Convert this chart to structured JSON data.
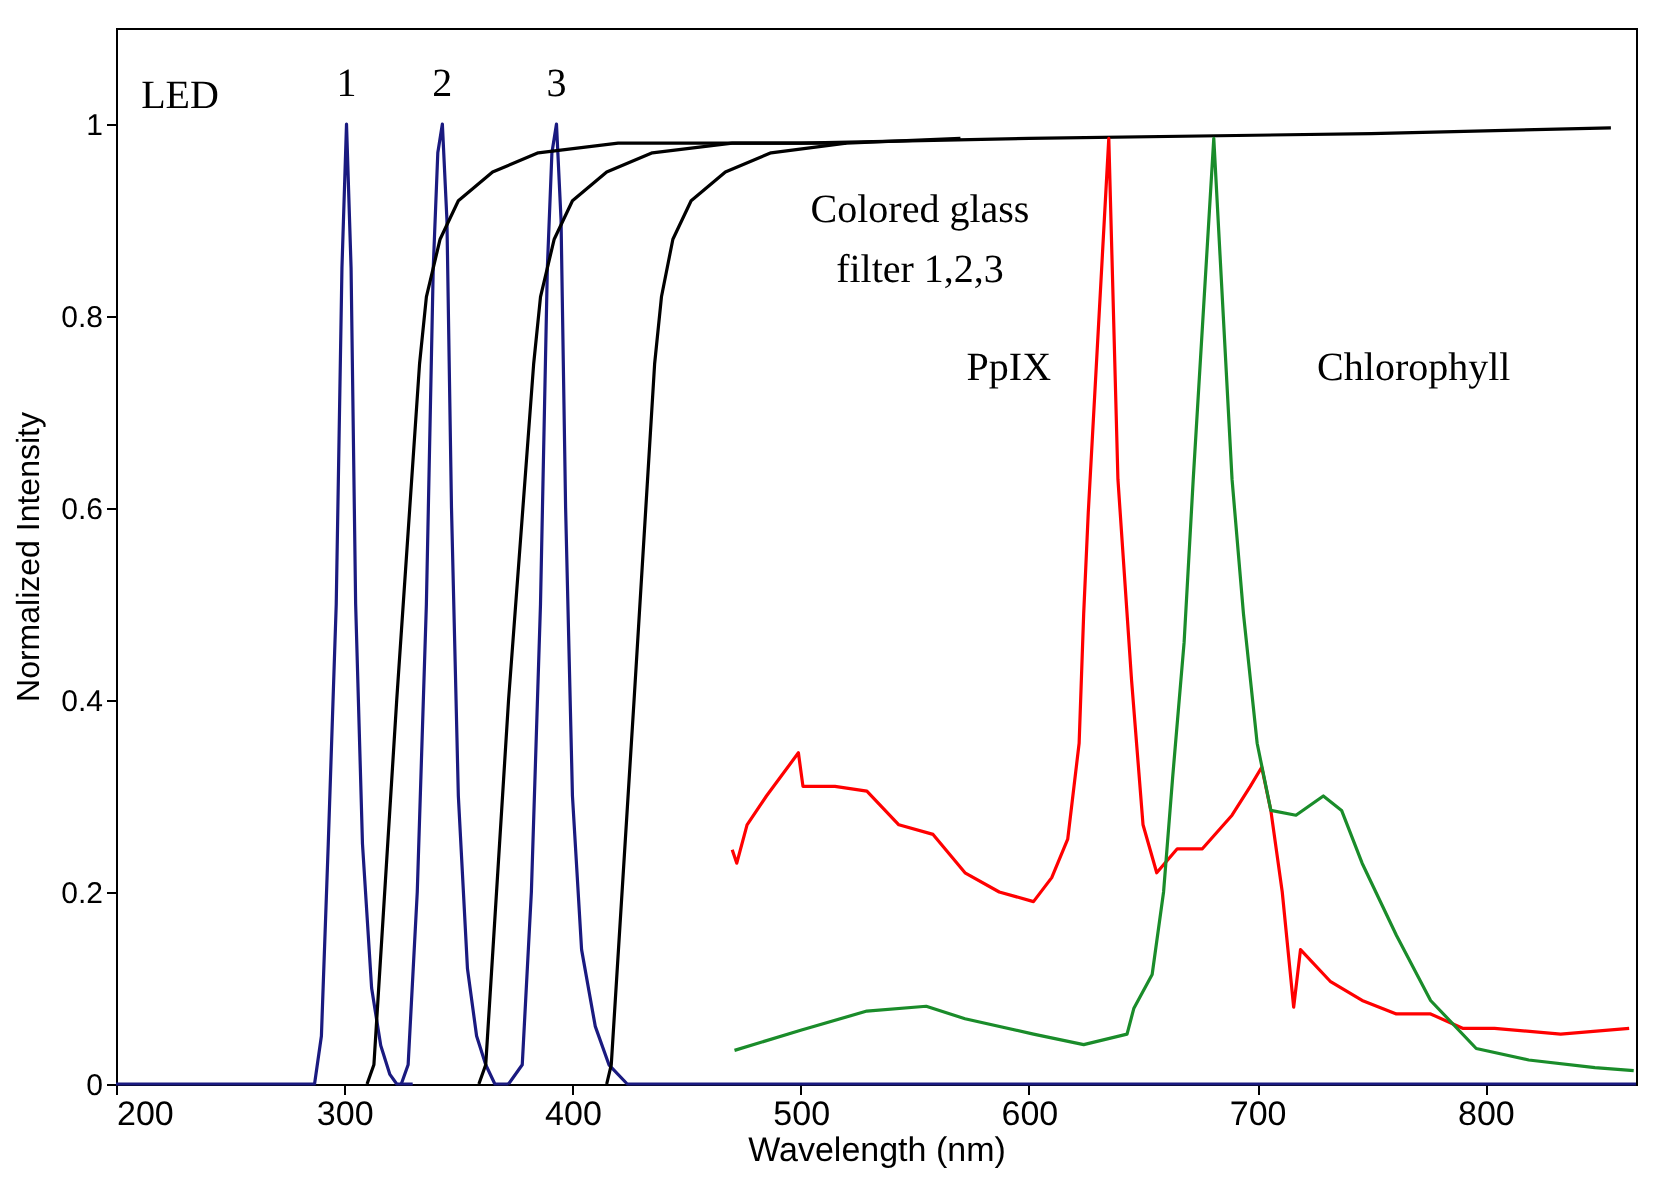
{
  "chart_data": {
    "type": "line",
    "xlabel": "Wavelength (nm)",
    "ylabel": "Normalized Intensity",
    "xlim": [
      200,
      866
    ],
    "ylim": [
      0,
      1.1
    ],
    "xticks": [
      200,
      300,
      400,
      500,
      600,
      700,
      800
    ],
    "yticks": [
      0,
      0.2,
      0.4,
      0.6,
      0.8,
      1
    ],
    "grid": false,
    "legend": false,
    "marker": "none",
    "line_style": "solid",
    "series": [
      {
        "name": "1",
        "color": "#1a1a80",
        "x": [
          200,
          287,
          290,
          293,
          296.5,
          299,
          301,
          303,
          305,
          308,
          312,
          316,
          320,
          323,
          330
        ],
        "values": [
          0,
          0,
          0.05,
          0.25,
          0.5,
          0.85,
          1,
          0.85,
          0.5,
          0.25,
          0.1,
          0.04,
          0.01,
          0,
          0
        ]
      },
      {
        "name": "2",
        "color": "#1a1a80",
        "x": [
          325,
          328,
          332,
          336,
          339,
          341,
          343,
          345,
          347,
          350,
          354,
          358,
          362,
          366,
          372
        ],
        "values": [
          0,
          0.02,
          0.2,
          0.5,
          0.85,
          0.97,
          1,
          0.9,
          0.6,
          0.3,
          0.12,
          0.05,
          0.02,
          0,
          0
        ]
      },
      {
        "name": "3",
        "color": "#1a1a80",
        "x": [
          372,
          378,
          382,
          386,
          389,
          391,
          393,
          395,
          397,
          400,
          404,
          410,
          416,
          424,
          430,
          866
        ],
        "values": [
          0,
          0.02,
          0.2,
          0.5,
          0.85,
          0.97,
          1,
          0.9,
          0.6,
          0.3,
          0.14,
          0.06,
          0.02,
          0,
          0,
          0
        ]
      },
      {
        "color": "#000000",
        "x": [
          310,
          313,
          323,
          333,
          336,
          342,
          350,
          365,
          385,
          420,
          500,
          600,
          750,
          855
        ],
        "values": [
          0,
          0.02,
          0.4,
          0.75,
          0.82,
          0.88,
          0.92,
          0.95,
          0.97,
          0.98,
          0.98,
          0.985,
          0.99,
          0.996
        ]
      },
      {
        "color": "#000000",
        "x": [
          359,
          362,
          372,
          383,
          386,
          392,
          400,
          415,
          435,
          470,
          520
        ],
        "values": [
          0,
          0.02,
          0.4,
          0.75,
          0.82,
          0.88,
          0.92,
          0.95,
          0.97,
          0.98,
          0.98
        ]
      },
      {
        "color": "#000000",
        "x": [
          415,
          417,
          427,
          436,
          439,
          444,
          452,
          467,
          487,
          520,
          570
        ],
        "values": [
          0,
          0.02,
          0.4,
          0.75,
          0.82,
          0.88,
          0.92,
          0.95,
          0.97,
          0.98,
          0.985
        ]
      },
      {
        "name": "PpIX",
        "color": "#ff0000",
        "x": [
          470,
          472,
          476.5,
          485,
          499,
          501,
          515,
          529,
          543,
          558,
          572,
          587,
          602,
          610,
          617,
          622,
          624,
          626,
          635,
          639,
          645,
          650,
          656,
          665,
          676,
          689,
          697,
          702,
          706,
          711,
          716,
          719,
          732,
          746,
          761,
          776,
          790,
          804,
          833,
          863
        ],
        "values": [
          0.244,
          0.23,
          0.27,
          0.3,
          0.345,
          0.31,
          0.31,
          0.305,
          0.27,
          0.26,
          0.22,
          0.2,
          0.19,
          0.215,
          0.255,
          0.355,
          0.49,
          0.595,
          0.985,
          0.63,
          0.42,
          0.27,
          0.22,
          0.245,
          0.245,
          0.28,
          0.31,
          0.33,
          0.285,
          0.2,
          0.08,
          0.14,
          0.107,
          0.087,
          0.073,
          0.073,
          0.058,
          0.058,
          0.052,
          0.058
        ]
      },
      {
        "name": "Chlorophyll",
        "color": "#1a8c2a",
        "x": [
          471,
          500,
          529,
          555,
          572,
          602,
          624,
          643,
          646,
          654,
          659,
          663,
          668,
          672,
          681,
          689,
          694,
          700,
          706,
          717,
          729,
          737,
          746,
          761,
          776,
          796,
          819,
          848,
          865
        ],
        "values": [
          0.035,
          0.056,
          0.076,
          0.081,
          0.068,
          0.052,
          0.041,
          0.052,
          0.079,
          0.114,
          0.2,
          0.32,
          0.46,
          0.63,
          0.985,
          0.63,
          0.49,
          0.355,
          0.285,
          0.28,
          0.3,
          0.285,
          0.23,
          0.155,
          0.087,
          0.037,
          0.025,
          0.017,
          0.014
        ]
      }
    ],
    "annotations": [
      "LED",
      "Colored glass\nfilter 1,2,3"
    ]
  }
}
